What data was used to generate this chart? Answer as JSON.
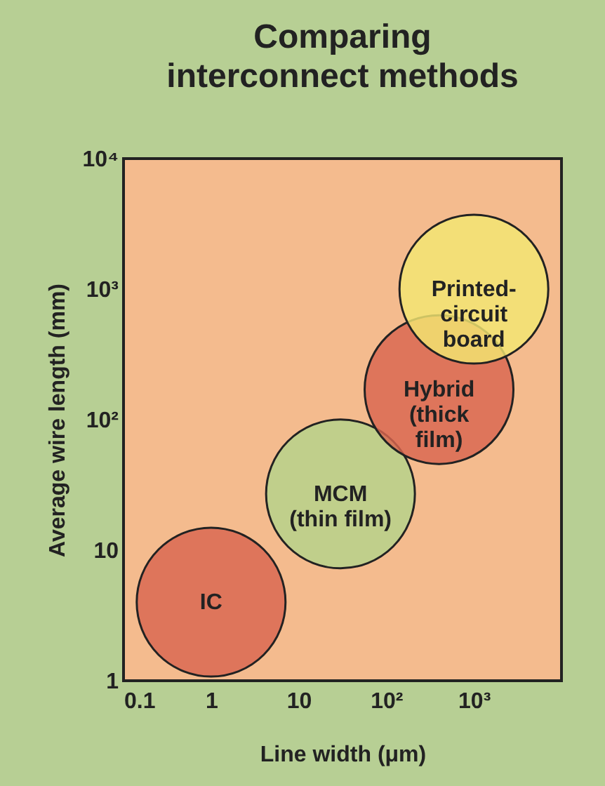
{
  "chart_data": {
    "type": "bubble",
    "title": "Comparing\ninterconnect methods",
    "xlabel": "Line width (μm)",
    "ylabel": "Average wire length (mm)",
    "log": "xy",
    "marker": "circle",
    "xlim": [
      0.1,
      10000
    ],
    "xticks": [
      0.1,
      1,
      10,
      {
        "value": 100,
        "label": "10²"
      },
      {
        "value": 1000,
        "label": "10³"
      }
    ],
    "ylim": [
      1,
      10000
    ],
    "yticks": [
      1,
      10,
      {
        "value": 100,
        "label": "10²"
      },
      {
        "value": 1000,
        "label": "10³"
      },
      {
        "value": 10000,
        "label": "10⁴"
      }
    ],
    "series": [
      {
        "name": "IC",
        "color": "#d9654f",
        "x": [
          1
        ],
        "values": [
          4
        ],
        "sizes": [
          1
        ]
      },
      {
        "name": "MCM\n(thin film)",
        "color": "#b5d38a",
        "x": [
          30
        ],
        "values": [
          27
        ],
        "sizes": [
          1
        ]
      },
      {
        "name": "Hybrid\n(thick\nfilm)",
        "color": "#d9654f",
        "x": [
          400
        ],
        "values": [
          170
        ],
        "sizes": [
          1
        ]
      },
      {
        "name": "Printed-\ncircuit\nboard",
        "color": "#f3e771",
        "x": [
          1000
        ],
        "values": [
          1000
        ],
        "sizes": [
          1
        ]
      }
    ]
  }
}
